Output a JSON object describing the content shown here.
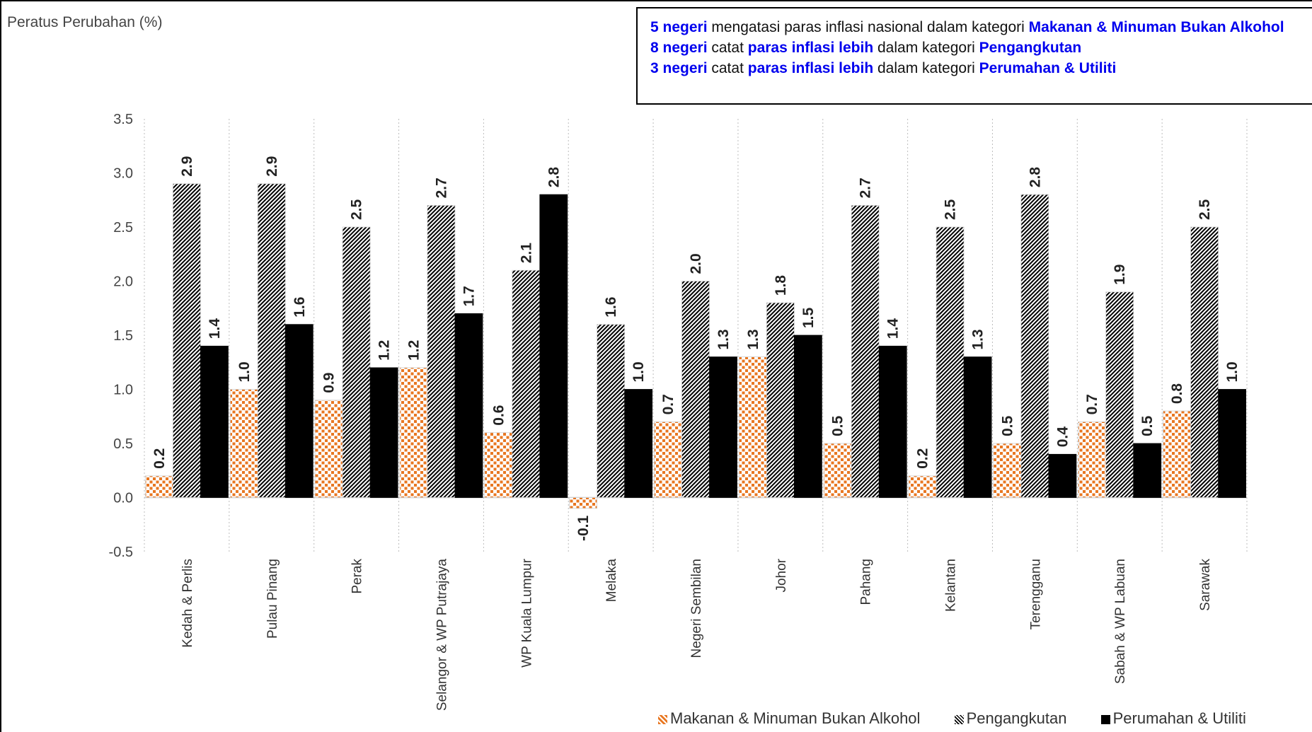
{
  "note": {
    "line1": {
      "a": "5 negeri",
      "b": " mengatasi paras inflasi nasional dalam kategori ",
      "c": "Makanan & Minuman Bukan Alkohol"
    },
    "line2": {
      "a": "8 negeri",
      "b": " catat ",
      "c": "paras inflasi lebih",
      "d": " dalam kategori ",
      "e": "Pengangkutan"
    },
    "line3": {
      "a": "3 negeri",
      "b": " catat ",
      "c": "paras inflasi lebih",
      "d": " dalam kategori ",
      "e": "Perumahan & Utiliti"
    }
  },
  "chart_data": {
    "type": "bar",
    "title": "",
    "ylabel": "Peratus Perubahan (%)",
    "xlabel": "",
    "ylim": [
      -0.5,
      3.5
    ],
    "yticks": [
      "3.5",
      "3.0",
      "2.5",
      "2.0",
      "1.5",
      "1.0",
      "0.5",
      "0.0",
      "-0.5"
    ],
    "categories": [
      "Kedah & Perlis",
      "Pulau Pinang",
      "Perak",
      "Selangor & WP Putrajaya",
      "WP Kuala Lumpur",
      "Melaka",
      "Negeri Sembilan",
      "Johor",
      "Pahang",
      "Kelantan",
      "Terengganu",
      "Sabah & WP Labuan",
      "Sarawak"
    ],
    "series": [
      {
        "name": "Makanan & Minuman Bukan Alkohol",
        "color": "#e87722",
        "pattern": "dots",
        "values": [
          0.2,
          1.0,
          0.9,
          1.2,
          0.6,
          -0.1,
          0.7,
          1.3,
          0.5,
          0.2,
          0.5,
          0.7,
          0.8
        ],
        "labels": [
          "0.2",
          "1.0",
          "0.9",
          "1.2",
          "0.6",
          "-0.1",
          "0.7",
          "1.3",
          "0.5",
          "0.2",
          "0.5",
          "0.7",
          "0.8"
        ]
      },
      {
        "name": "Pengangkutan",
        "color": "#000000",
        "pattern": "diagonal",
        "values": [
          2.9,
          2.9,
          2.5,
          2.7,
          2.1,
          1.6,
          2.0,
          1.8,
          2.7,
          2.5,
          2.8,
          1.9,
          2.5
        ],
        "labels": [
          "2.9",
          "2.9",
          "2.5",
          "2.7",
          "2.1",
          "1.6",
          "2.0",
          "1.8",
          "2.7",
          "2.5",
          "2.8",
          "1.9",
          "2.5"
        ]
      },
      {
        "name": "Perumahan & Utiliti",
        "color": "#000000",
        "pattern": "solid",
        "values": [
          1.4,
          1.6,
          1.2,
          1.7,
          2.8,
          1.0,
          1.3,
          1.5,
          1.4,
          1.3,
          0.4,
          0.5,
          1.0
        ],
        "labels": [
          "1.4",
          "1.6",
          "1.2",
          "1.7",
          "2.8",
          "1.0",
          "1.3",
          "1.5",
          "1.4",
          "1.3",
          "0.4",
          "0.5",
          "1.0"
        ]
      }
    ],
    "grid": "vertical-dotted",
    "legend": "bottom-right"
  }
}
